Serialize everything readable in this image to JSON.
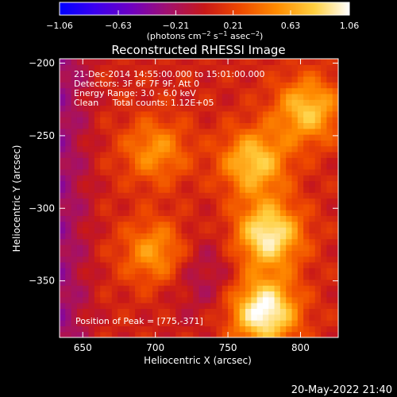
{
  "colorbar": {
    "ticks": [
      "−1.06",
      "−0.63",
      "−0.21",
      "0.21",
      "0.63",
      "1.06"
    ],
    "tick_values": [
      -1.06,
      -0.63,
      -0.21,
      0.21,
      0.63,
      1.06
    ],
    "unit_main": "(photons cm",
    "unit_exp1": "−2",
    "unit_mid": " s",
    "unit_exp2": "−1",
    "unit_tail": " asec",
    "unit_exp3": "−2",
    "unit_close": ")",
    "colors": [
      "#0000ff",
      "#6a00c8",
      "#9a1080",
      "#c01030",
      "#e03000",
      "#ff7000",
      "#ffb000",
      "#ffe060",
      "#ffffff"
    ]
  },
  "chart_data": {
    "type": "heatmap",
    "title": "Reconstructed RHESSI Image",
    "xlabel": "Heliocentric X (arcsec)",
    "ylabel": "Heliocentric Y (arcsec)",
    "xlim": [
      634,
      826
    ],
    "ylim": [
      -389,
      -197
    ],
    "xticks": [
      650,
      700,
      750,
      800
    ],
    "yticks": [
      -200,
      -250,
      -300,
      -350
    ],
    "annotations": [
      "21-Dec-2014 14:55:00.000 to 15:01:00.000",
      "Detectors: 3F 6F 7F 9F, Att 0",
      "Energy Range: 3.0 - 6.0 keV",
      "Clean     Total counts: 1.12E+05"
    ],
    "peak_label": "Position of Peak = [775,-371]",
    "peak": [
      775,
      -371
    ],
    "sources": [
      {
        "x": 775,
        "y": -371,
        "peak": 1.06
      },
      {
        "x": 778,
        "y": -318,
        "peak": 0.95
      },
      {
        "x": 768,
        "y": -268,
        "peak": 0.75
      },
      {
        "x": 805,
        "y": -232,
        "peak": 0.72
      },
      {
        "x": 700,
        "y": -330,
        "peak": 0.55
      },
      {
        "x": 700,
        "y": -260,
        "peak": 0.5
      }
    ]
  },
  "footer": {
    "date": "20-May-2022 21:40"
  }
}
